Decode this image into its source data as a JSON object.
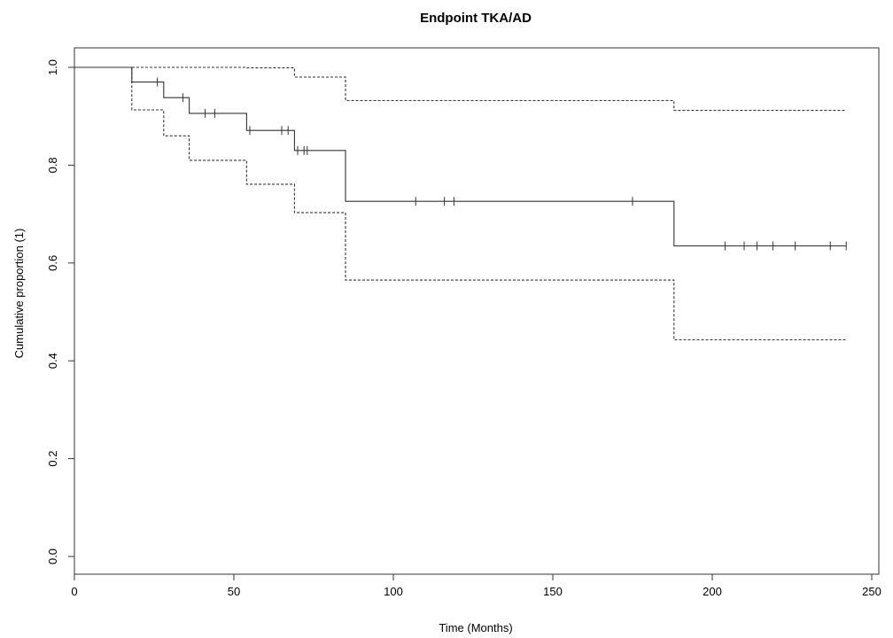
{
  "chart_data": {
    "type": "line",
    "title": "Endpoint TKA/AD",
    "xlabel": "Time (Months)",
    "ylabel": "Cumulative proportion (1)",
    "xlim": [
      0,
      250
    ],
    "ylim": [
      0,
      1
    ],
    "xticks": [
      0,
      50,
      100,
      150,
      200,
      250
    ],
    "yticks": [
      0.0,
      0.2,
      0.4,
      0.6,
      0.8,
      1.0
    ],
    "ytick_labels": [
      "0.0",
      "0.2",
      "0.4",
      "0.6",
      "0.8",
      "1.0"
    ],
    "grid": false,
    "legend": "none",
    "series": [
      {
        "role": "survival",
        "style": "solid",
        "points": [
          [
            0,
            1.0
          ],
          [
            18,
            1.0
          ],
          [
            18,
            0.97
          ],
          [
            28,
            0.97
          ],
          [
            28,
            0.938
          ],
          [
            36,
            0.938
          ],
          [
            36,
            0.906
          ],
          [
            54,
            0.906
          ],
          [
            54,
            0.871
          ],
          [
            69,
            0.871
          ],
          [
            69,
            0.83
          ],
          [
            85,
            0.83
          ],
          [
            85,
            0.726
          ],
          [
            188,
            0.726
          ],
          [
            188,
            0.635
          ],
          [
            242,
            0.635
          ]
        ]
      },
      {
        "role": "upper-ci",
        "style": "dashed",
        "points": [
          [
            0,
            1.0
          ],
          [
            54,
            1.0
          ],
          [
            54,
            0.999
          ],
          [
            69,
            0.999
          ],
          [
            69,
            0.98
          ],
          [
            85,
            0.98
          ],
          [
            85,
            0.932
          ],
          [
            188,
            0.932
          ],
          [
            188,
            0.912
          ],
          [
            242,
            0.912
          ]
        ]
      },
      {
        "role": "lower-ci",
        "style": "dashed",
        "points": [
          [
            0,
            1.0
          ],
          [
            18,
            1.0
          ],
          [
            18,
            0.913
          ],
          [
            28,
            0.913
          ],
          [
            28,
            0.86
          ],
          [
            36,
            0.86
          ],
          [
            36,
            0.81
          ],
          [
            54,
            0.81
          ],
          [
            54,
            0.761
          ],
          [
            69,
            0.761
          ],
          [
            69,
            0.703
          ],
          [
            85,
            0.703
          ],
          [
            85,
            0.565
          ],
          [
            188,
            0.565
          ],
          [
            188,
            0.443
          ],
          [
            242,
            0.443
          ]
        ]
      }
    ],
    "censor_marks": [
      [
        26,
        0.97
      ],
      [
        34,
        0.938
      ],
      [
        41,
        0.906
      ],
      [
        44,
        0.906
      ],
      [
        55,
        0.871
      ],
      [
        65,
        0.871
      ],
      [
        67,
        0.871
      ],
      [
        70,
        0.83
      ],
      [
        72,
        0.83
      ],
      [
        73,
        0.83
      ],
      [
        107,
        0.726
      ],
      [
        116,
        0.726
      ],
      [
        119,
        0.726
      ],
      [
        175,
        0.726
      ],
      [
        204,
        0.635
      ],
      [
        210,
        0.635
      ],
      [
        214,
        0.635
      ],
      [
        219,
        0.635
      ],
      [
        226,
        0.635
      ],
      [
        237,
        0.635
      ],
      [
        242,
        0.635
      ]
    ]
  }
}
